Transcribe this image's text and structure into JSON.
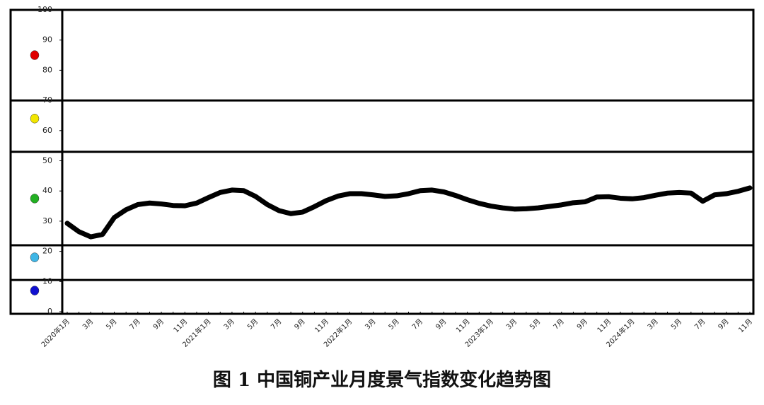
{
  "chart_data": {
    "type": "line",
    "title": "图 1 中国铜产业月度景气指数变化趋势图",
    "categories": [
      "2020年1月",
      null,
      "3月",
      null,
      "5月",
      null,
      "7月",
      null,
      "9月",
      null,
      "11月",
      null,
      "2021年1月",
      null,
      "3月",
      null,
      "5月",
      null,
      "7月",
      null,
      "9月",
      null,
      "11月",
      null,
      "2022年1月",
      null,
      "3月",
      null,
      "5月",
      null,
      "7月",
      null,
      "9月",
      null,
      "11月",
      null,
      "2023年1月",
      null,
      "3月",
      null,
      "5月",
      null,
      "7月",
      null,
      "9月",
      null,
      "11月",
      null,
      "2024年1月",
      null,
      "3月",
      null,
      "5月",
      null,
      "7月",
      null,
      "9月",
      null,
      "11月"
    ],
    "values": [
      29.3,
      26.5,
      24.8,
      25.6,
      31.2,
      33.8,
      35.5,
      36,
      35.7,
      35.2,
      35.1,
      36,
      37.8,
      39.5,
      40.3,
      40.1,
      38.2,
      35.5,
      33.5,
      32.5,
      33,
      34.8,
      36.8,
      38.3,
      39.1,
      39.1,
      38.7,
      38.2,
      38.4,
      39.1,
      40.1,
      40.3,
      39.7,
      38.5,
      37.1,
      35.9,
      35,
      34.4,
      34,
      34.1,
      34.4,
      34.9,
      35.4,
      36.1,
      36.4,
      38,
      38.1,
      37.6,
      37.4,
      37.8,
      38.6,
      39.3,
      39.5,
      39.3,
      36.6,
      38.7,
      39.1,
      39.9,
      41
    ],
    "color": "#000000",
    "ylim": [
      0,
      100
    ],
    "yticks": [
      0,
      10,
      20,
      30,
      40,
      50,
      60,
      70,
      80,
      90,
      100
    ],
    "zone_bounds": [
      70,
      53,
      22,
      10.5
    ],
    "signals": [
      {
        "color": "#e00000",
        "value": 85
      },
      {
        "color": "#f2e600",
        "value": 64
      },
      {
        "color": "#22b022",
        "value": 37.5
      },
      {
        "color": "#3fb6e6",
        "value": 18
      },
      {
        "color": "#1010d0",
        "value": 7
      }
    ]
  }
}
